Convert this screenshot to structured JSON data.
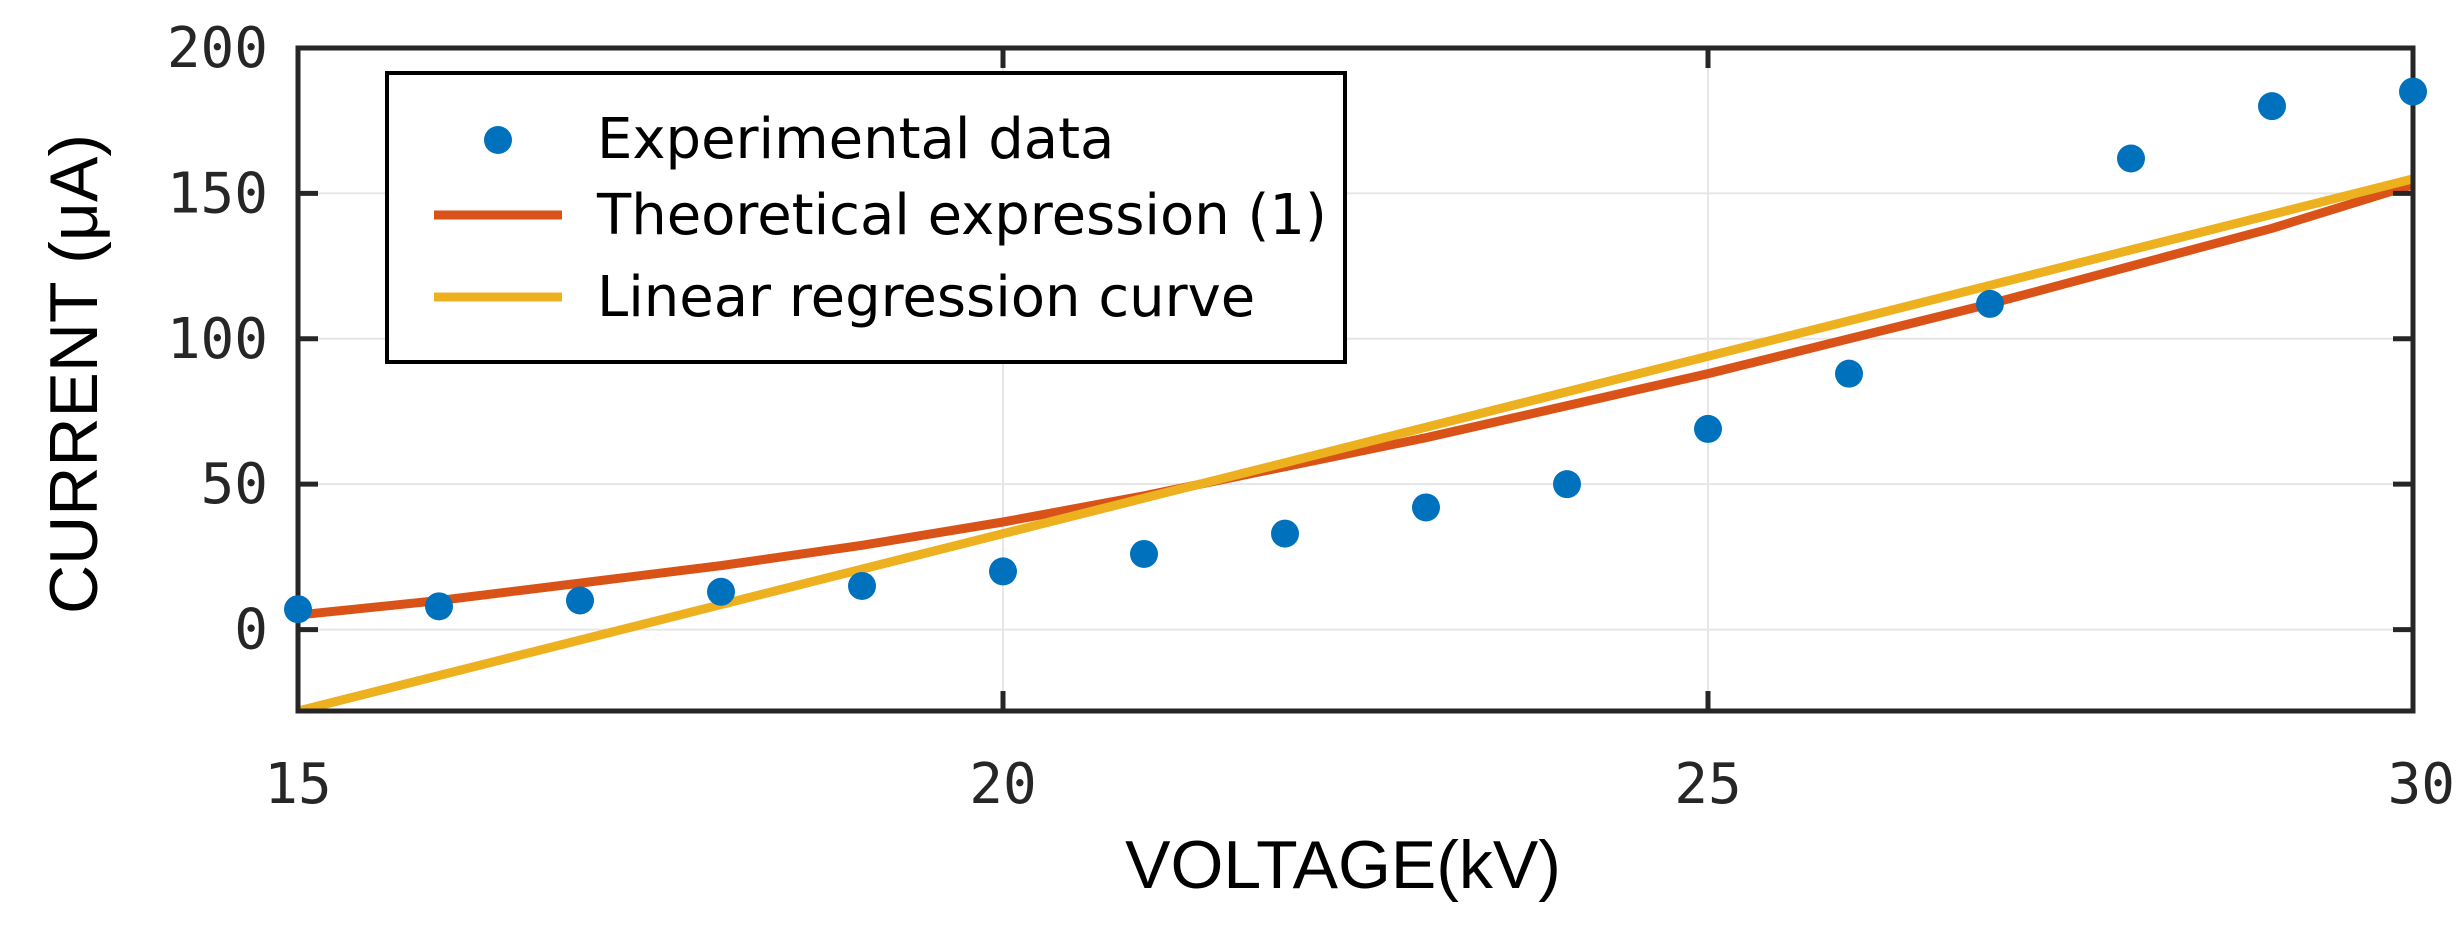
{
  "chart_data": {
    "type": "line",
    "title": "",
    "xlabel": "VOLTAGE(kV)",
    "ylabel": "CURRENT (μA)",
    "xlim": [
      15,
      30
    ],
    "ylim": [
      -28,
      200
    ],
    "xticks": [
      15,
      20,
      25,
      30
    ],
    "xtick_labels": [
      "15",
      "20",
      "25",
      "30"
    ],
    "yticks": [
      0,
      50,
      100,
      150,
      200
    ],
    "ytick_labels": [
      "0",
      "50",
      "100",
      "150",
      "200"
    ],
    "grid": true,
    "legend_position": "top-left",
    "series": [
      {
        "name": "Experimental data",
        "kind": "scatter",
        "color": "#0072BD",
        "x": [
          15,
          16,
          17,
          18,
          19,
          20,
          21,
          22,
          23,
          24,
          25,
          26,
          27,
          28,
          29,
          30
        ],
        "y": [
          7,
          8,
          10,
          13,
          15,
          20,
          26,
          33,
          42,
          50,
          69,
          88,
          112,
          162,
          180,
          185
        ]
      },
      {
        "name": "Theoretical expression (1)",
        "kind": "line",
        "color": "#D95319",
        "x": [
          15,
          16,
          17,
          18,
          19,
          20,
          21,
          22,
          23,
          24,
          25,
          26,
          27,
          28,
          29,
          30
        ],
        "y": [
          5,
          10,
          16,
          22,
          29,
          37,
          46,
          56,
          66,
          77,
          88,
          100,
          112,
          125,
          138,
          153
        ]
      },
      {
        "name": "Linear regression curve",
        "kind": "line",
        "color": "#EDB120",
        "x": [
          15,
          30
        ],
        "y": [
          -28,
          155
        ]
      }
    ]
  }
}
